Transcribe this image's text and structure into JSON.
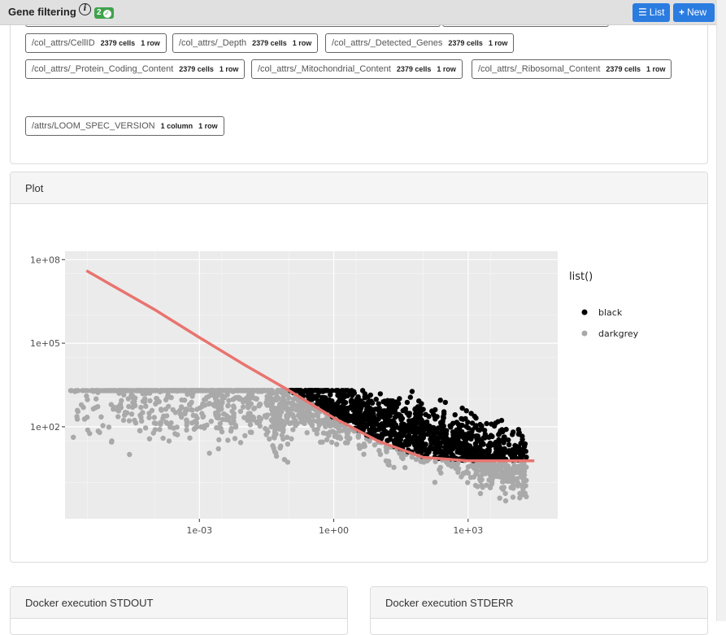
{
  "header": {
    "title": "Gene filtering",
    "badge_count": "2",
    "list_label": "List",
    "new_label": "New"
  },
  "datasets": [
    {
      "path": "/col_attrs/CellID",
      "size": "2379 cells",
      "shape": "1 row"
    },
    {
      "path": "/col_attrs/_Depth",
      "size": "2379 cells",
      "shape": "1 row"
    },
    {
      "path": "/col_attrs/_Detected_Genes",
      "size": "2379 cells",
      "shape": "1 row"
    },
    {
      "path": "/col_attrs/_Protein_Coding_Content",
      "size": "2379 cells",
      "shape": "1 row"
    },
    {
      "path": "/col_attrs/_Mitochondrial_Content",
      "size": "2379 cells",
      "shape": "1 row"
    },
    {
      "path": "/col_attrs/_Ribosomal_Content",
      "size": "2379 cells",
      "shape": "1 row"
    },
    {
      "path": "/attrs/LOOM_SPEC_VERSION",
      "size": "1 column",
      "shape": "1 row"
    }
  ],
  "plot_panel": {
    "title": "Plot"
  },
  "chart_data": {
    "type": "scatter",
    "x_scale": "log10",
    "y_scale": "log10",
    "x_ticks": [
      "1e-03",
      "1e+00",
      "1e+03"
    ],
    "y_ticks": [
      "1e+08",
      "1e+05",
      "1e+02"
    ],
    "xlim": [
      1e-06,
      100000.0
    ],
    "ylim": [
      0.05,
      200000000.0
    ],
    "legend_title": "list()",
    "legend_position": "right",
    "series": [
      {
        "name": "black",
        "color": "#000000"
      },
      {
        "name": "darkgrey",
        "color": "#a9a9a9"
      }
    ],
    "trend_line": {
      "color": "#e8746f",
      "x": [
        3e-06,
        0.0001,
        0.001,
        0.01,
        0.1,
        1,
        10,
        100,
        1000,
        10000,
        30000
      ],
      "y": [
        40000000,
        1600000,
        160000,
        17000,
        2000,
        210,
        30,
        8,
        6,
        6,
        6
      ]
    },
    "background": "#ebebeb",
    "grid": true
  },
  "bottom_panels": {
    "stdout_title": "Docker execution STDOUT",
    "stderr_title": "Docker execution STDERR"
  }
}
